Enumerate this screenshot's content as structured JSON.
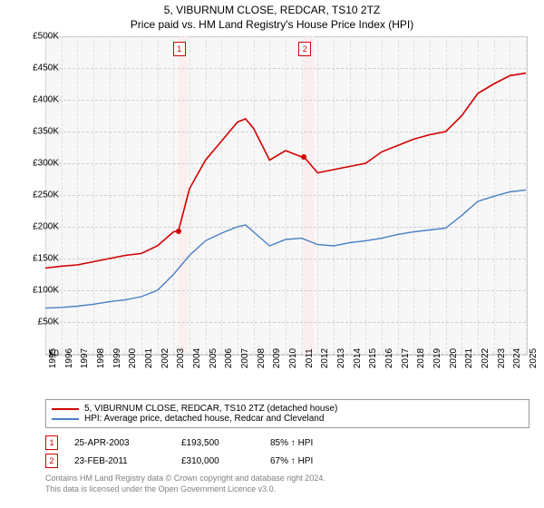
{
  "title": {
    "line1": "5, VIBURNUM CLOSE, REDCAR, TS10 2TZ",
    "line2": "Price paid vs. HM Land Registry's House Price Index (HPI)"
  },
  "chart": {
    "type": "line",
    "background_color": "#f7f7f7",
    "grid_color": "#cccccc",
    "highlight_band_color": "#fbeeee",
    "x": {
      "min": 1995,
      "max": 2025,
      "ticks": [
        1995,
        1996,
        1997,
        1998,
        1999,
        2000,
        2001,
        2002,
        2003,
        2004,
        2005,
        2006,
        2007,
        2008,
        2009,
        2010,
        2011,
        2012,
        2013,
        2014,
        2015,
        2016,
        2017,
        2018,
        2019,
        2020,
        2021,
        2022,
        2023,
        2024,
        2025
      ]
    },
    "y": {
      "min": 0,
      "max": 500000,
      "step": 50000,
      "ticks": [
        0,
        50000,
        100000,
        150000,
        200000,
        250000,
        300000,
        350000,
        400000,
        450000,
        500000
      ],
      "labels": [
        "£0",
        "£50K",
        "£100K",
        "£150K",
        "£200K",
        "£250K",
        "£300K",
        "£350K",
        "£400K",
        "£450K",
        "£500K"
      ]
    },
    "highlight_bands": [
      {
        "start": 2003.31,
        "width_years": 0.6
      },
      {
        "start": 2011.15,
        "width_years": 0.6
      }
    ],
    "series": [
      {
        "id": "property",
        "color": "#d00000",
        "width": 1.6,
        "data": [
          [
            1995,
            135000
          ],
          [
            1996,
            138000
          ],
          [
            1997,
            140000
          ],
          [
            1998,
            145000
          ],
          [
            1999,
            150000
          ],
          [
            2000,
            155000
          ],
          [
            2001,
            158000
          ],
          [
            2002,
            170000
          ],
          [
            2003,
            192000
          ],
          [
            2003.31,
            193500
          ],
          [
            2004,
            260000
          ],
          [
            2005,
            305000
          ],
          [
            2006,
            335000
          ],
          [
            2007,
            365000
          ],
          [
            2007.5,
            370000
          ],
          [
            2008,
            355000
          ],
          [
            2009,
            305000
          ],
          [
            2010,
            320000
          ],
          [
            2011,
            310000
          ],
          [
            2011.15,
            310000
          ],
          [
            2012,
            285000
          ],
          [
            2013,
            290000
          ],
          [
            2014,
            295000
          ],
          [
            2015,
            300000
          ],
          [
            2016,
            318000
          ],
          [
            2017,
            328000
          ],
          [
            2018,
            338000
          ],
          [
            2019,
            345000
          ],
          [
            2020,
            350000
          ],
          [
            2021,
            375000
          ],
          [
            2022,
            410000
          ],
          [
            2023,
            425000
          ],
          [
            2024,
            438000
          ],
          [
            2025,
            442000
          ]
        ]
      },
      {
        "id": "hpi",
        "color": "#4a7fc4",
        "width": 1.4,
        "data": [
          [
            1995,
            72000
          ],
          [
            1996,
            73000
          ],
          [
            1997,
            75000
          ],
          [
            1998,
            78000
          ],
          [
            1999,
            82000
          ],
          [
            2000,
            85000
          ],
          [
            2001,
            90000
          ],
          [
            2002,
            100000
          ],
          [
            2003,
            125000
          ],
          [
            2004,
            155000
          ],
          [
            2005,
            178000
          ],
          [
            2006,
            190000
          ],
          [
            2007,
            200000
          ],
          [
            2007.5,
            203000
          ],
          [
            2008,
            192000
          ],
          [
            2009,
            170000
          ],
          [
            2010,
            180000
          ],
          [
            2011,
            182000
          ],
          [
            2012,
            172000
          ],
          [
            2013,
            170000
          ],
          [
            2014,
            175000
          ],
          [
            2015,
            178000
          ],
          [
            2016,
            182000
          ],
          [
            2017,
            188000
          ],
          [
            2018,
            192000
          ],
          [
            2019,
            195000
          ],
          [
            2020,
            198000
          ],
          [
            2021,
            218000
          ],
          [
            2022,
            240000
          ],
          [
            2023,
            248000
          ],
          [
            2024,
            255000
          ],
          [
            2025,
            258000
          ]
        ]
      }
    ],
    "sale_points": [
      {
        "x": 2003.31,
        "y": 193500,
        "color": "#d00000"
      },
      {
        "x": 2011.15,
        "y": 310000,
        "color": "#d00000"
      }
    ],
    "markers": [
      {
        "n": "1",
        "x": 2003.31
      },
      {
        "n": "2",
        "x": 2011.15
      }
    ]
  },
  "legend": {
    "items": [
      {
        "color": "#d00000",
        "label": "5, VIBURNUM CLOSE, REDCAR, TS10 2TZ (detached house)"
      },
      {
        "color": "#4a7fc4",
        "label": "HPI: Average price, detached house, Redcar and Cleveland"
      }
    ]
  },
  "events": [
    {
      "n": "1",
      "date": "25-APR-2003",
      "price": "£193,500",
      "pct": "85% ↑ HPI"
    },
    {
      "n": "2",
      "date": "23-FEB-2011",
      "price": "£310,000",
      "pct": "67% ↑ HPI"
    }
  ],
  "footer": {
    "line1": "Contains HM Land Registry data © Crown copyright and database right 2024.",
    "line2": "This data is licensed under the Open Government Licence v3.0."
  }
}
